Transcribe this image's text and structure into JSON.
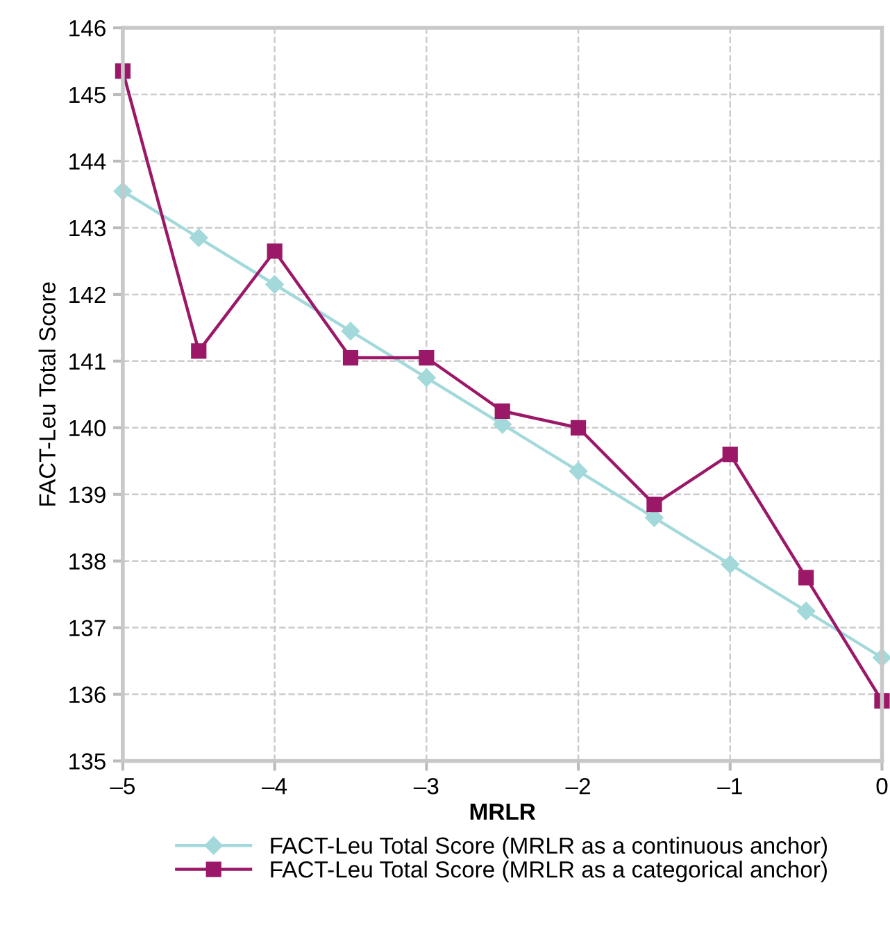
{
  "chart_data": {
    "type": "line",
    "xlabel": "MRLR",
    "ylabel": "FACT-Leu Total Score",
    "x": [
      -5,
      -4.5,
      -4,
      -3.5,
      -3,
      -2.5,
      -2,
      -1.5,
      -1,
      -0.5,
      0
    ],
    "series": [
      {
        "name": "FACT-Leu Total Score (MRLR as a continuous anchor)",
        "color": "#a3d9db",
        "marker": "diamond",
        "values": [
          143.55,
          142.85,
          142.15,
          141.45,
          140.75,
          140.05,
          139.35,
          138.65,
          137.95,
          137.25,
          136.55
        ]
      },
      {
        "name": "FACT-Leu Total Score (MRLR as a categorical anchor)",
        "color": "#9b1868",
        "marker": "square",
        "values": [
          145.35,
          141.15,
          142.65,
          141.05,
          141.05,
          140.25,
          140.0,
          138.85,
          139.6,
          137.75,
          135.9
        ]
      }
    ],
    "xlim": [
      -5,
      0
    ],
    "xticks": [
      {
        "value": -5,
        "label": "–5"
      },
      {
        "value": -4,
        "label": "–4"
      },
      {
        "value": -3,
        "label": "–3"
      },
      {
        "value": -2,
        "label": "–2"
      },
      {
        "value": -1,
        "label": "–1"
      },
      0
    ],
    "ylim": [
      135,
      146
    ],
    "yticks": [
      135,
      136,
      137,
      138,
      139,
      140,
      141,
      142,
      143,
      144,
      145,
      146
    ],
    "grid": true,
    "legend": "bottom",
    "line_style": "solid"
  }
}
